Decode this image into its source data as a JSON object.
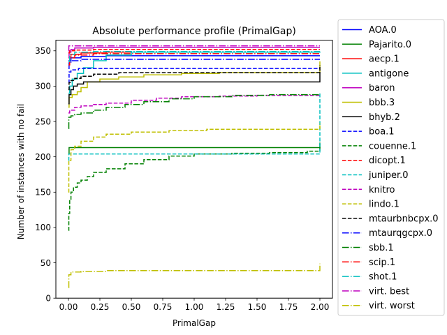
{
  "chart_data": {
    "type": "line",
    "title": "Absolute performance profile (PrimalGap)",
    "xlabel": "PrimalGap",
    "ylabel": "Number of instances with no fail",
    "xlim": [
      -0.1,
      2.1
    ],
    "ylim": [
      0,
      365
    ],
    "xticks": [
      0.0,
      0.25,
      0.5,
      0.75,
      1.0,
      1.25,
      1.5,
      1.75,
      2.0
    ],
    "xtick_labels": [
      "0.00",
      "0.25",
      "0.50",
      "0.75",
      "1.00",
      "1.25",
      "1.50",
      "1.75",
      "2.00"
    ],
    "yticks": [
      0,
      50,
      100,
      150,
      200,
      250,
      300,
      350
    ],
    "ytick_labels": [
      "0",
      "50",
      "100",
      "150",
      "200",
      "250",
      "300",
      "350"
    ],
    "grid": false,
    "legend_position": "outside-right",
    "series": [
      {
        "name": "AOA.0",
        "color": "#0000ff",
        "dash": "solid",
        "x": [
          0,
          0.02,
          0.1,
          0.3,
          2.0
        ],
        "y": [
          336,
          340,
          342,
          343,
          343
        ]
      },
      {
        "name": "Pajarito.0",
        "color": "#008000",
        "dash": "solid",
        "x": [
          0,
          0.005,
          2.0,
          2.0
        ],
        "y": [
          205,
          213,
          213,
          220
        ]
      },
      {
        "name": "aecp.1",
        "color": "#ff0000",
        "dash": "solid",
        "x": [
          0,
          0.02,
          0.1,
          0.3,
          2.0
        ],
        "y": [
          340,
          345,
          347,
          348,
          348
        ]
      },
      {
        "name": "antigone",
        "color": "#00bfbf",
        "dash": "solid",
        "x": [
          0,
          0.01,
          0.03,
          0.07,
          0.12,
          0.2,
          0.3,
          0.5,
          2.0
        ],
        "y": [
          290,
          300,
          310,
          318,
          326,
          336,
          344,
          348,
          349
        ]
      },
      {
        "name": "baron",
        "color": "#bf00bf",
        "dash": "solid",
        "x": [
          0,
          0.005,
          0.02,
          0.05,
          0.2,
          2.0
        ],
        "y": [
          340,
          348,
          352,
          354,
          355,
          355
        ]
      },
      {
        "name": "bbb.3",
        "color": "#bfbf00",
        "dash": "solid",
        "x": [
          0,
          0.005,
          0.03,
          0.07,
          0.1,
          0.15,
          0.25,
          0.4,
          0.6,
          0.9,
          1.2,
          2.0,
          2.0
        ],
        "y": [
          270,
          284,
          288,
          292,
          298,
          306,
          310,
          313,
          316,
          318,
          319,
          319,
          335
        ]
      },
      {
        "name": "bhyb.2",
        "color": "#000000",
        "dash": "solid",
        "x": [
          0,
          0.005,
          0.02,
          0.04,
          0.07,
          0.12,
          2.0,
          2.0
        ],
        "y": [
          275,
          288,
          295,
          300,
          303,
          306,
          306,
          320
        ]
      },
      {
        "name": "boa.1",
        "color": "#0000ff",
        "dash": "dashed",
        "x": [
          0,
          0.005,
          0.02,
          0.08,
          2.0
        ],
        "y": [
          305,
          320,
          323,
          325,
          325
        ]
      },
      {
        "name": "couenne.1",
        "color": "#008000",
        "dash": "dashed",
        "x": [
          0,
          0.003,
          0.01,
          0.02,
          0.04,
          0.07,
          0.1,
          0.15,
          0.2,
          0.3,
          0.45,
          0.6,
          0.8,
          1.0,
          1.3,
          1.6,
          1.9,
          2.0,
          2.0
        ],
        "y": [
          96,
          120,
          140,
          150,
          157,
          163,
          167,
          172,
          178,
          183,
          190,
          196,
          201,
          204,
          205,
          206,
          208,
          208,
          218
        ]
      },
      {
        "name": "dicopt.1",
        "color": "#ff0000",
        "dash": "dashed",
        "x": [
          0,
          0.01,
          0.05,
          0.2,
          2.0
        ],
        "y": [
          347,
          350,
          351,
          352,
          352
        ]
      },
      {
        "name": "juniper.0",
        "color": "#00bfbf",
        "dash": "dashed",
        "x": [
          0,
          0.003,
          2.0,
          2.0,
          2.0
        ],
        "y": [
          195,
          204,
          204,
          250,
          290
        ]
      },
      {
        "name": "knitro",
        "color": "#bf00bf",
        "dash": "dashed",
        "x": [
          0,
          0.01,
          0.05,
          0.1,
          0.2,
          0.3,
          0.5,
          0.7,
          0.9,
          1.2,
          1.5,
          2.0
        ],
        "y": [
          262,
          266,
          270,
          272,
          274,
          276,
          280,
          283,
          285,
          286,
          287,
          288
        ]
      },
      {
        "name": "lindo.1",
        "color": "#bfbf00",
        "dash": "dashed",
        "x": [
          0,
          0.003,
          0.02,
          0.05,
          0.1,
          0.2,
          0.3,
          0.5,
          0.8,
          1.1,
          1.5,
          2.0,
          2.0
        ],
        "y": [
          150,
          195,
          210,
          215,
          222,
          228,
          232,
          235,
          237,
          239,
          239,
          239,
          248
        ]
      },
      {
        "name": "mtaurbnbcpx.0",
        "color": "#000000",
        "dash": "dashed",
        "x": [
          0,
          0.005,
          0.02,
          0.05,
          0.1,
          0.2,
          0.4,
          2.0,
          2.0
        ],
        "y": [
          295,
          305,
          308,
          311,
          314,
          317,
          319,
          320,
          330
        ]
      },
      {
        "name": "mtaurqgcpx.0",
        "color": "#0000ff",
        "dash": "dashdot",
        "x": [
          0,
          0.005,
          0.02,
          0.1,
          0.3,
          2.0
        ],
        "y": [
          325,
          333,
          336,
          338,
          338,
          338
        ]
      },
      {
        "name": "sbb.1",
        "color": "#008000",
        "dash": "dashdot",
        "x": [
          0,
          0.003,
          0.02,
          0.05,
          0.1,
          0.2,
          0.3,
          0.45,
          0.6,
          0.8,
          1.0,
          1.3,
          1.6,
          2.0
        ],
        "y": [
          240,
          256,
          258,
          260,
          262,
          266,
          270,
          274,
          278,
          282,
          285,
          287,
          288,
          289
        ]
      },
      {
        "name": "scip.1",
        "color": "#ff0000",
        "dash": "dashdot",
        "x": [
          0,
          0.01,
          0.05,
          0.2,
          2.0
        ],
        "y": [
          330,
          340,
          344,
          346,
          346
        ]
      },
      {
        "name": "shot.1",
        "color": "#00bfbf",
        "dash": "dashdot",
        "x": [
          0,
          0.01,
          0.05,
          0.2,
          2.0
        ],
        "y": [
          335,
          345,
          348,
          349,
          349
        ]
      },
      {
        "name": "virt. best",
        "color": "#bf00bf",
        "dash": "dashdot",
        "x": [
          0,
          0.003,
          2.0
        ],
        "y": [
          350,
          357,
          357
        ]
      },
      {
        "name": "virt. worst",
        "color": "#bfbf00",
        "dash": "dashdot",
        "x": [
          0,
          0.003,
          0.02,
          0.1,
          0.3,
          2.0,
          2.0
        ],
        "y": [
          15,
          33,
          37,
          38,
          39,
          40,
          49
        ]
      }
    ]
  }
}
